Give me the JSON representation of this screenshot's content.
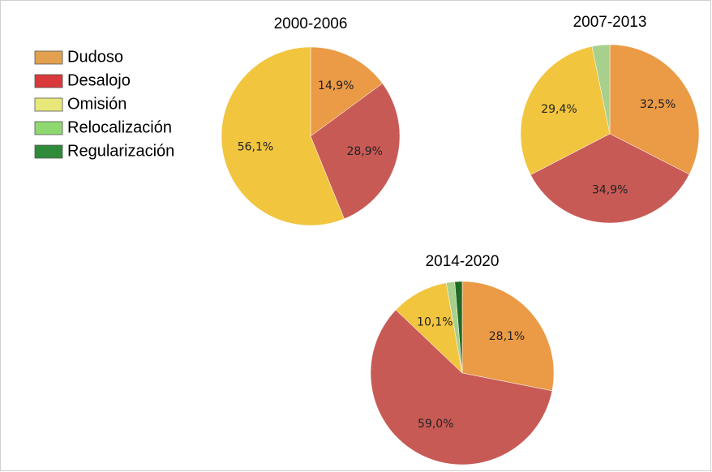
{
  "legend": [
    {
      "name": "Dudoso",
      "color": "#e3a150"
    },
    {
      "name": "Desalojo",
      "color": "#d9393a"
    },
    {
      "name": "Omisión",
      "color": "#e8e87a"
    },
    {
      "name": "Relocalización",
      "color": "#8fd86f"
    },
    {
      "name": "Regularización",
      "color": "#2e8b3a"
    }
  ],
  "chart_data": [
    {
      "type": "pie",
      "title": "2000-2006",
      "values": [
        14.9,
        28.9,
        56.1
      ],
      "value_labels": [
        "14,9%",
        "28,9%",
        "56,1%"
      ],
      "colors": [
        "#eb9a45",
        "#c85a55",
        "#f2c53f"
      ]
    },
    {
      "type": "pie",
      "title": "2007-2013",
      "values": [
        32.5,
        34.9,
        29.4,
        3.2
      ],
      "value_labels": [
        "32,5%",
        "34,9%",
        "29,4%",
        null
      ],
      "colors": [
        "#eb9a45",
        "#c85a55",
        "#f2c53f",
        "#a8d08d"
      ]
    },
    {
      "type": "pie",
      "title": "2014-2020",
      "values": [
        28.1,
        59.0,
        10.1,
        1.5,
        1.3
      ],
      "value_labels": [
        "28,1%",
        "59,0%",
        "10,1%",
        null,
        null
      ],
      "colors": [
        "#eb9a45",
        "#c85a55",
        "#f2c53f",
        "#a8d08d",
        "#1f6b25"
      ]
    }
  ]
}
